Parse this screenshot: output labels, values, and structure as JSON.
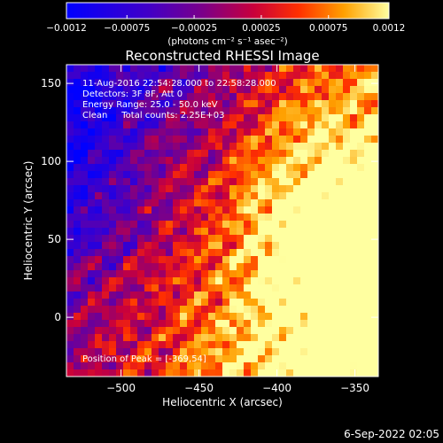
{
  "chart_data": {
    "type": "heatmap",
    "title": "Reconstructed RHESSI Image",
    "xlabel": "Heliocentric X (arcsec)",
    "ylabel": "Heliocentric Y (arcsec)",
    "xlim": [
      -535,
      -335
    ],
    "ylim": [
      -38,
      162
    ],
    "xticks": [
      -500,
      -450,
      -400,
      -350
    ],
    "yticks": [
      0,
      50,
      100,
      150
    ],
    "colorbar": {
      "label": "(photons cm⁻² s⁻¹ asec⁻²)",
      "range": [
        -0.0012,
        0.0012
      ],
      "ticks": [
        "-0.0012",
        "-0.00075",
        "-0.00025",
        "0.00025",
        "0.00075",
        "0.0012"
      ]
    },
    "annotations": [
      "11-Aug-2016 22:54:28.000 to 22:58:28.000",
      "Detectors: 3F 8F, Att 0",
      "Energy Range: 25.0 - 50.0 keV",
      "Clean     Total counts: 2.25E+03"
    ],
    "peak_label": "Position of Peak = [-369,54]",
    "peak": [
      -369,
      54
    ]
  },
  "footer": {
    "date": "6-Sep-2022 02:05"
  }
}
